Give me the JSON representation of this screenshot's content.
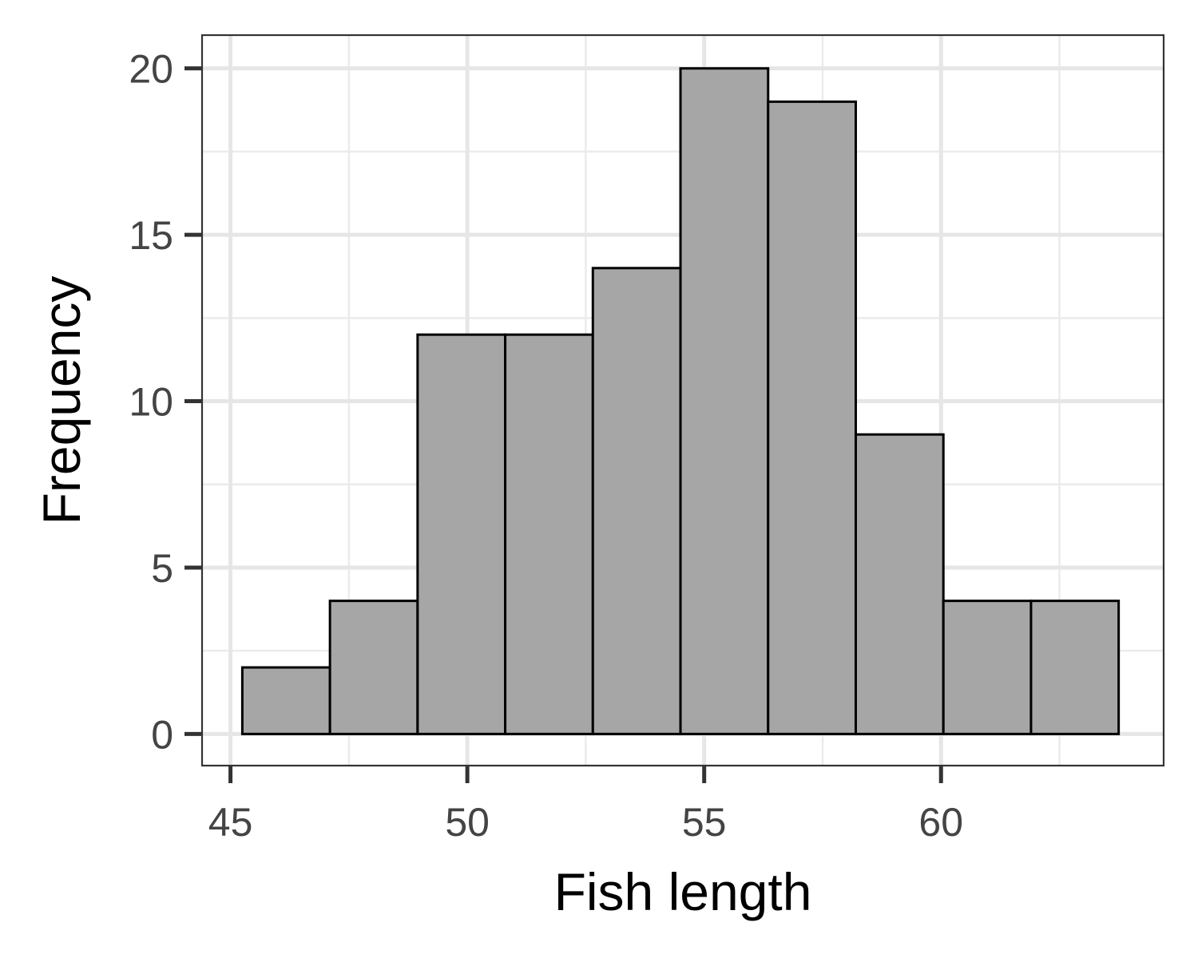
{
  "chart_data": {
    "type": "histogram",
    "title": "",
    "xlabel": "Fish length",
    "ylabel": "Frequency",
    "xlim": [
      44.4,
      64.7
    ],
    "ylim": [
      -0.95,
      21
    ],
    "x_ticks": [
      45,
      50,
      55,
      60
    ],
    "y_ticks": [
      0,
      5,
      10,
      15,
      20
    ],
    "x_minor_gridlines": [
      47.5,
      52.5,
      57.5,
      62.5
    ],
    "y_minor_gridlines": [
      2.5,
      7.5,
      12.5,
      17.5
    ],
    "grid": true,
    "legend": "none",
    "bar_fill": "#a6a6a6",
    "bar_outline": "#000000",
    "bins": [
      {
        "x0": 45.25,
        "x1": 47.1,
        "count": 2
      },
      {
        "x0": 47.1,
        "x1": 48.95,
        "count": 4
      },
      {
        "x0": 48.95,
        "x1": 50.8,
        "count": 12
      },
      {
        "x0": 50.8,
        "x1": 52.65,
        "count": 12
      },
      {
        "x0": 52.65,
        "x1": 54.5,
        "count": 14
      },
      {
        "x0": 54.5,
        "x1": 56.35,
        "count": 20
      },
      {
        "x0": 56.35,
        "x1": 58.2,
        "count": 19
      },
      {
        "x0": 58.2,
        "x1": 60.05,
        "count": 9
      },
      {
        "x0": 60.05,
        "x1": 61.9,
        "count": 4
      },
      {
        "x0": 61.9,
        "x1": 63.75,
        "count": 4
      }
    ]
  }
}
